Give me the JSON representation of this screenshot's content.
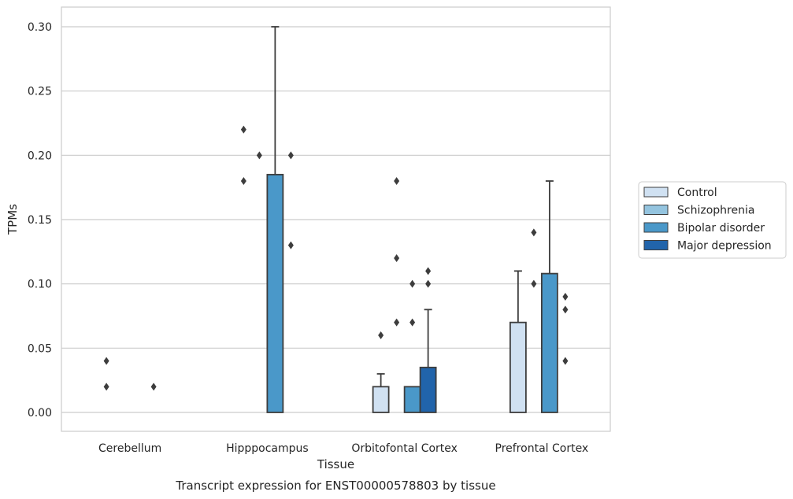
{
  "chart_data": {
    "type": "bar",
    "xlabel": "Tissue",
    "ylabel": "TPMs",
    "caption": "Transcript expression for ENST00000578803 by tissue",
    "ylim": [
      -0.015,
      0.315
    ],
    "yticks": [
      "0.00",
      "0.05",
      "0.10",
      "0.15",
      "0.20",
      "0.25",
      "0.30"
    ],
    "grid": true,
    "legend_placement": "right",
    "categories": [
      "Cerebellum",
      "Hipppocampus",
      "Orbitofontal Cortex",
      "Prefrontal Cortex"
    ],
    "series": [
      {
        "name": "Control",
        "color": "#d0e1f2",
        "values": [
          0.0,
          0.0,
          0.02,
          0.07
        ],
        "whisker_high": [
          null,
          null,
          0.03,
          0.11
        ],
        "outliers": [
          [
            0.02,
            0.04
          ],
          [
            0.18,
            0.22
          ],
          [
            0.06
          ],
          []
        ]
      },
      {
        "name": "Schizophrenia",
        "color": "#94c4df",
        "values": [
          0.0,
          0.0,
          0.0,
          0.0
        ],
        "whisker_high": [
          null,
          null,
          null,
          null
        ],
        "outliers": [
          [],
          [
            0.2
          ],
          [
            0.07,
            0.12,
            0.18
          ],
          [
            0.1,
            0.14
          ]
        ]
      },
      {
        "name": "Bipolar disorder",
        "color": "#4a98c9",
        "values": [
          0.0,
          0.185,
          0.02,
          0.108
        ],
        "whisker_high": [
          null,
          0.3,
          null,
          0.18
        ],
        "outliers": [
          [],
          [],
          [
            0.07,
            0.1
          ],
          []
        ]
      },
      {
        "name": "Major depression",
        "color": "#2164ab",
        "values": [
          0.0,
          0.0,
          0.035,
          0.0
        ],
        "whisker_high": [
          null,
          null,
          0.08,
          null
        ],
        "outliers": [
          [
            0.02
          ],
          [
            0.13,
            0.2
          ],
          [
            0.1,
            0.11
          ],
          [
            0.04,
            0.08,
            0.09
          ]
        ]
      }
    ]
  }
}
